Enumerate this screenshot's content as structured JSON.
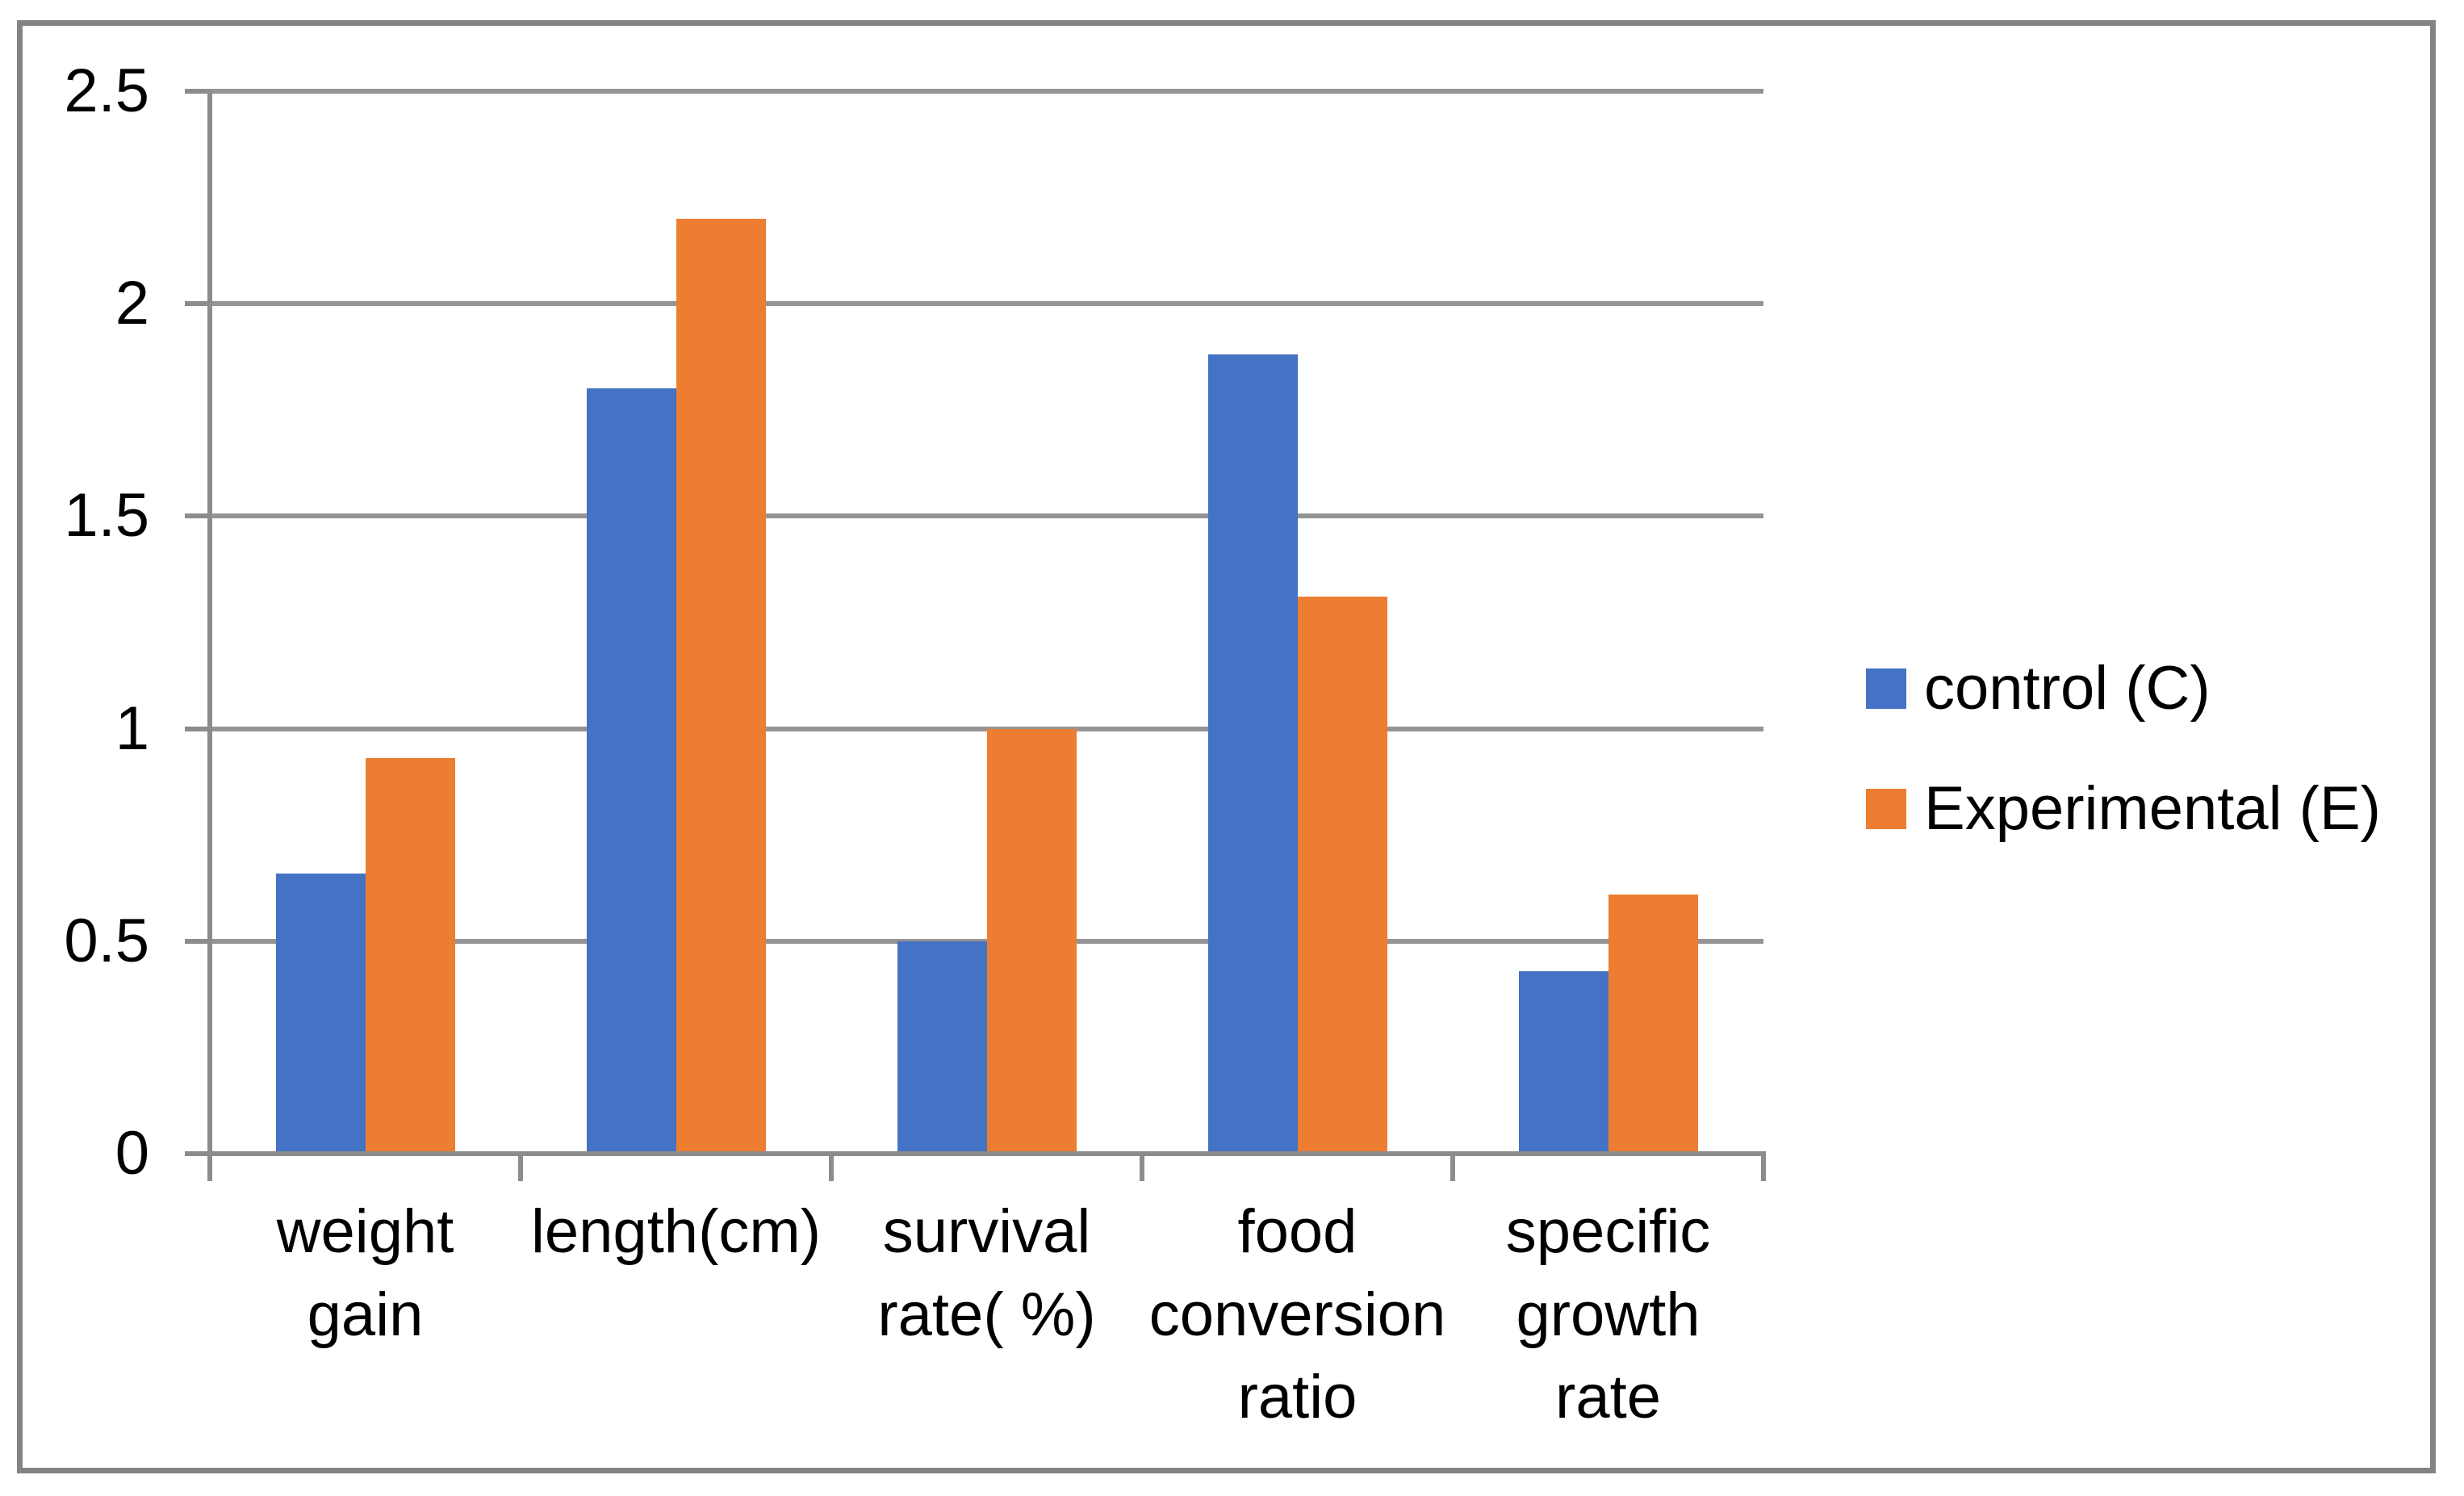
{
  "chart_data": {
    "type": "bar",
    "categories": [
      "weight gain",
      "length(cm)",
      "survival rate( %)",
      "food conversion ratio",
      "specific growth rate"
    ],
    "category_label_lines": [
      [
        "weight",
        "gain"
      ],
      [
        "length(cm)"
      ],
      [
        "survival",
        "rate( %)"
      ],
      [
        "food",
        "conversion",
        "ratio"
      ],
      [
        "specific",
        "growth",
        "rate"
      ]
    ],
    "series": [
      {
        "name": "control (C)",
        "color": "#4472C4",
        "values": [
          0.66,
          1.8,
          0.5,
          1.88,
          0.43
        ]
      },
      {
        "name": "Experimental (E)",
        "color": "#ED7D31",
        "values": [
          0.93,
          2.2,
          1.0,
          1.31,
          0.61
        ]
      }
    ],
    "y_axis": {
      "min": 0,
      "max": 2.5,
      "tick_interval": 0.5,
      "tick_labels": [
        "0",
        "0.5",
        "1",
        "1.5",
        "2",
        "2.5"
      ]
    },
    "grid": true,
    "legend_position": "right"
  },
  "colors": {
    "control_series": "#4472C4",
    "experimental_series": "#ED7D31",
    "gridline": "#949494",
    "axis_line": "#8C8C8C",
    "frame_border": "#848484",
    "text": "#000000",
    "background": "#FFFFFF"
  }
}
